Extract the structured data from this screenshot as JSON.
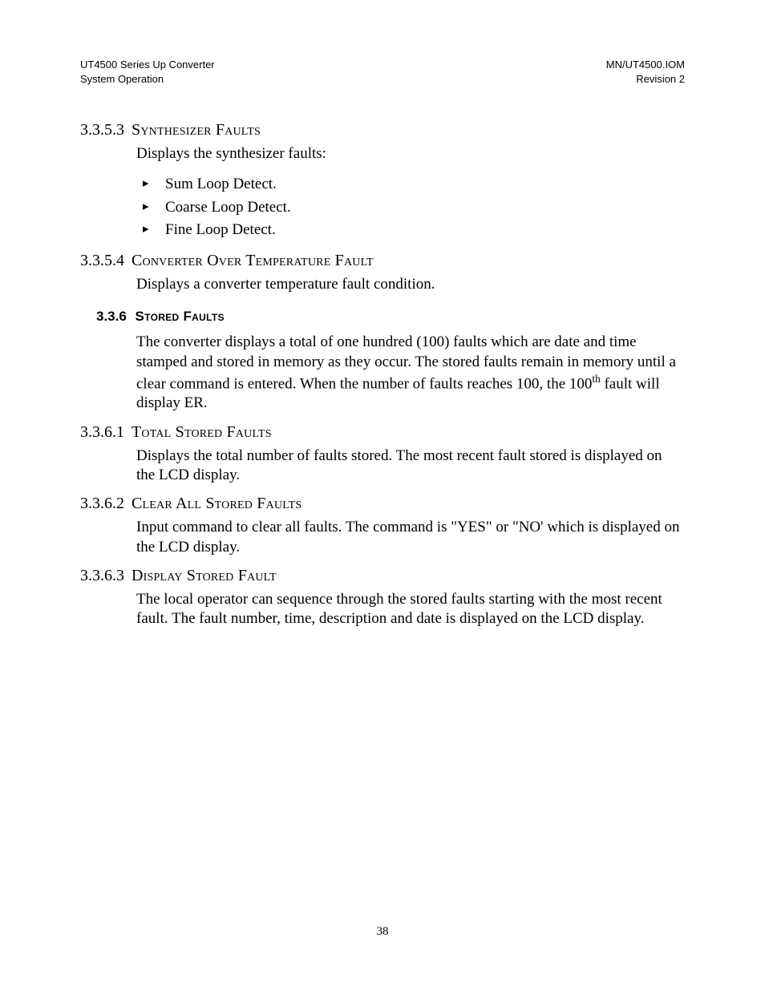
{
  "header": {
    "left1": "UT4500 Series Up Converter",
    "left2": "System Operation",
    "right1": "MN/UT4500.IOM",
    "right2": "Revision 2"
  },
  "sec_3353": {
    "num": "3.3.5.3",
    "title": "Synthesizer Faults",
    "lead": "Displays the synthesizer faults:",
    "items": [
      "Sum Loop Detect.",
      "Coarse Loop Detect.",
      "Fine Loop Detect."
    ]
  },
  "sec_3354": {
    "num": "3.3.5.4",
    "title": "Converter Over Temperature Fault",
    "body": "Displays a converter temperature fault condition."
  },
  "sec_336": {
    "num": "3.3.6",
    "title": "Stored Faults",
    "body_pre": "The converter displays a total of one hundred (100) faults which are date and time stamped and stored in memory as they occur.  The stored faults remain in memory until a clear command is entered.  When the number of faults reaches 100, the 100",
    "sup": "th",
    "body_post": " fault will display ER."
  },
  "sec_3361": {
    "num": "3.3.6.1",
    "title": "Total Stored Faults",
    "body": "Displays the total number of faults stored.  The most recent fault stored is displayed on the LCD display."
  },
  "sec_3362": {
    "num": "3.3.6.2",
    "title": "Clear All Stored Faults",
    "body": "Input command to clear all faults.  The command is \"YES\" or \"NO' which is displayed on the LCD display."
  },
  "sec_3363": {
    "num": "3.3.6.3",
    "title": "Display Stored Fault",
    "body": "The local operator can sequence through the stored faults starting with the most recent fault.  The fault number, time, description and date is displayed on the LCD display."
  },
  "page_number": "38"
}
